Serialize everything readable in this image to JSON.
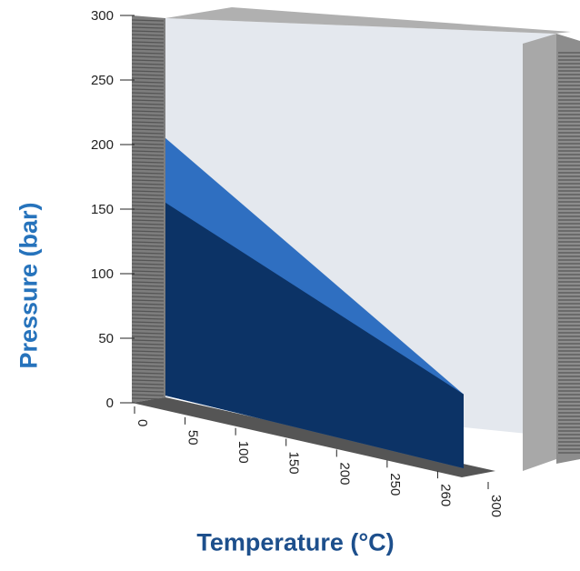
{
  "chart_data": {
    "type": "area",
    "xlabel": "Temperature (°C)",
    "ylabel": "Pressure (bar)",
    "x_ticks": [
      "0",
      "50",
      "100",
      "150",
      "200",
      "250",
      "260",
      "300"
    ],
    "y_ticks": [
      "0",
      "50",
      "100",
      "150",
      "200",
      "250",
      "300"
    ],
    "ylim": [
      0,
      300
    ],
    "series": [
      {
        "color": "#2f6fc1",
        "points": [
          [
            0,
            205
          ],
          [
            260,
            46
          ]
        ]
      },
      {
        "color": "#0c3366",
        "points": [
          [
            0,
            155
          ],
          [
            260,
            46
          ]
        ]
      }
    ],
    "colors": {
      "title": "#2673bc",
      "back_wall": "#e4e8ee",
      "right_wall": "#a8a8a8",
      "left_wall": "#7d7d7d",
      "floor": "#555555",
      "tick_text": "#222222"
    }
  }
}
